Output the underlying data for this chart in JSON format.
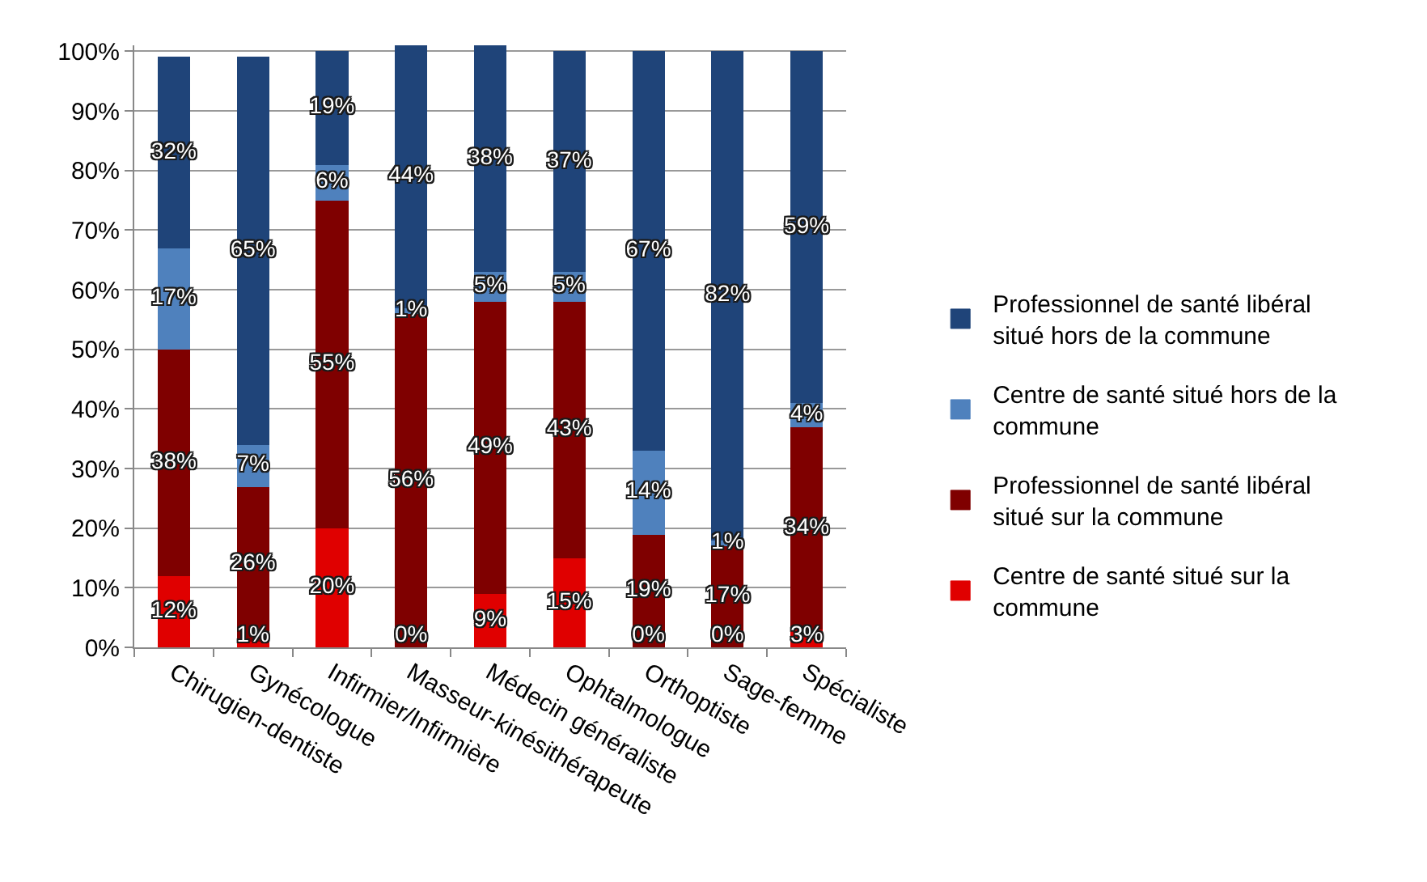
{
  "chart_data": {
    "type": "bar",
    "stacked": true,
    "categories": [
      "Chirugien-dentiste",
      "Gynécologue",
      "Infirmier/Infirmière",
      "Masseur-kinésithérapeute",
      "Médecin généraliste",
      "Ophtalmologue",
      "Orthoptiste",
      "Sage-femme",
      "Spécialiste"
    ],
    "series": [
      {
        "name": "Centre de santé situé sur la commune",
        "color": "#e00000",
        "values": [
          12,
          1,
          20,
          0,
          9,
          15,
          0,
          0,
          3
        ],
        "value_labels": [
          "12%",
          "1%",
          "20%",
          "0%",
          "9%",
          "15%",
          "0%",
          "0%",
          "3%"
        ]
      },
      {
        "name": "Professionnel de santé libéral situé sur la commune",
        "color": "#7f0000",
        "values": [
          38,
          26,
          55,
          56,
          49,
          43,
          19,
          17,
          34
        ],
        "value_labels": [
          "38%",
          "26%",
          "55%",
          "56%",
          "49%",
          "43%",
          "19%",
          "17%",
          "34%"
        ]
      },
      {
        "name": "Centre de santé situé hors de la commune",
        "color": "#4f81bd",
        "values": [
          17,
          7,
          6,
          1,
          5,
          5,
          14,
          1,
          4
        ],
        "value_labels": [
          "17%",
          "7%",
          "6%",
          "1%",
          "5%",
          "5%",
          "14%",
          "1%",
          "4%"
        ]
      },
      {
        "name": "Professionnel de santé libéral situé hors de la commune",
        "color": "#1f4479",
        "values": [
          32,
          65,
          19,
          44,
          38,
          37,
          67,
          82,
          59
        ],
        "value_labels": [
          "32%",
          "65%",
          "19%",
          "44%",
          "38%",
          "37%",
          "67%",
          "82%",
          "59%"
        ]
      }
    ],
    "ylim": [
      0,
      101
    ],
    "yticks": [
      {
        "value": 0,
        "label": "0%"
      },
      {
        "value": 10,
        "label": "10%"
      },
      {
        "value": 20,
        "label": "20%"
      },
      {
        "value": 30,
        "label": "30%"
      },
      {
        "value": 40,
        "label": "40%"
      },
      {
        "value": 50,
        "label": "50%"
      },
      {
        "value": 60,
        "label": "60%"
      },
      {
        "value": 70,
        "label": "70%"
      },
      {
        "value": 80,
        "label": "80%"
      },
      {
        "value": 90,
        "label": "90%"
      },
      {
        "value": 100,
        "label": "100%"
      }
    ],
    "grid": "y",
    "legend": "right"
  }
}
